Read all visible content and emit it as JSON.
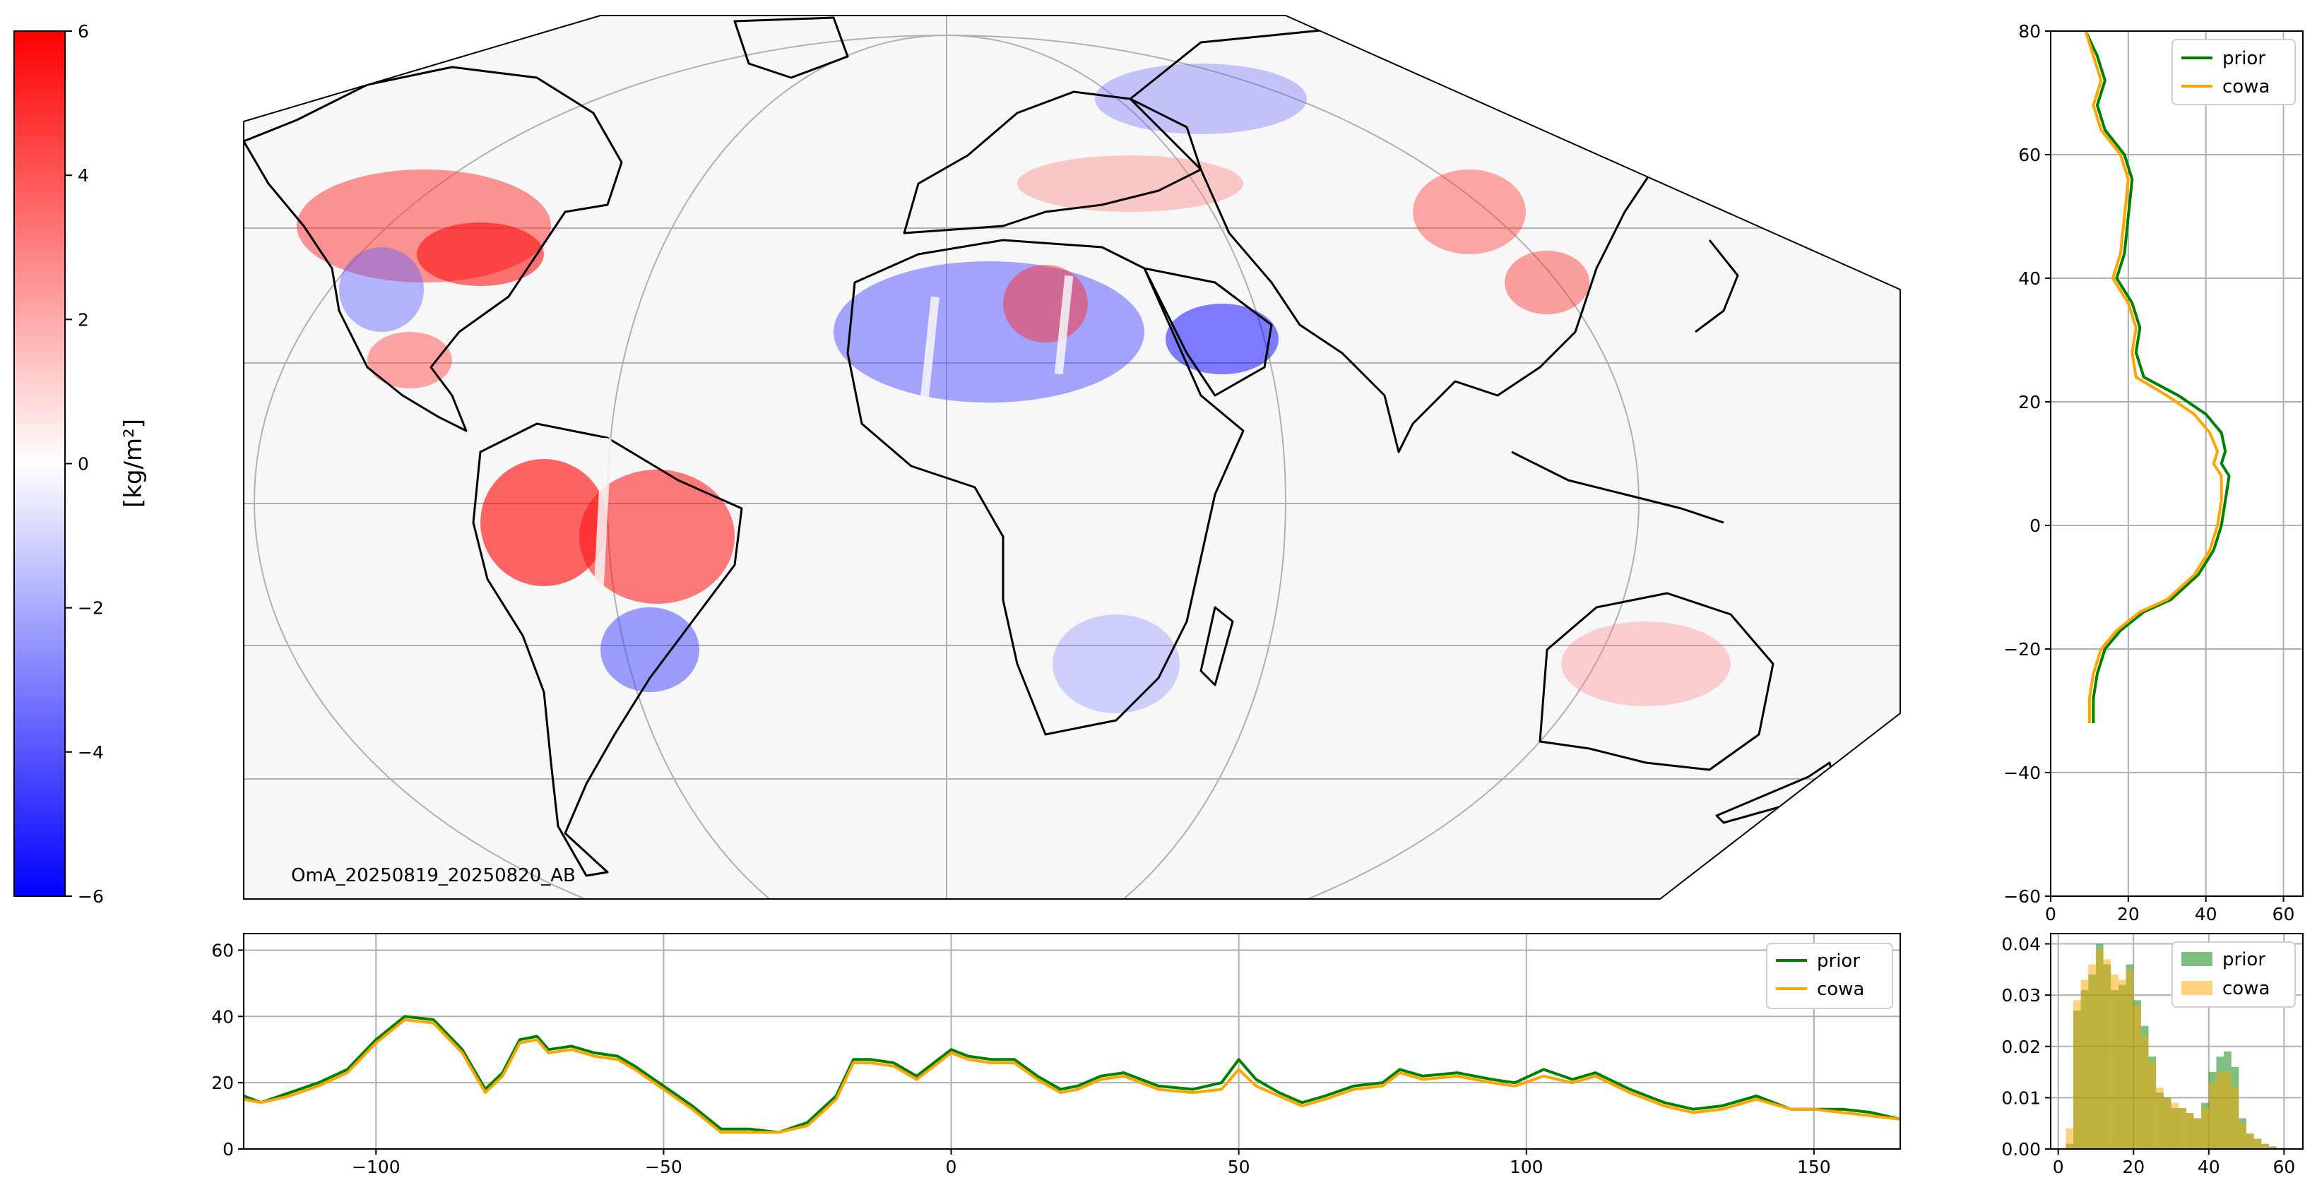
{
  "colorbar": {
    "label": "[kg/m²]",
    "min": -6,
    "max": 6,
    "ticks": [
      "6",
      "4",
      "2",
      "0",
      "−2",
      "−4",
      "−6"
    ],
    "colors": [
      "#0000ff",
      "#ffffff",
      "#ff0000"
    ]
  },
  "map": {
    "annotation": "OmA_20250819_20250820_AB",
    "projection": "Robinson-like (clipped)",
    "lon_range": [
      -120,
      165
    ],
    "lat_range": [
      -60,
      80
    ],
    "gridlines": true,
    "colors": {
      "positive": "#ff0000",
      "negative": "#0000ff",
      "background": "#f7f7f7",
      "coast": "#000000"
    }
  },
  "chart_data": [
    {
      "type": "line",
      "panel": "latitude-profile",
      "orientation": "horizontal values, latitude on y",
      "xlim": [
        0,
        65
      ],
      "ylim": [
        -60,
        80
      ],
      "xticks": [
        "0",
        "20",
        "40",
        "60"
      ],
      "yticks": [
        "80",
        "60",
        "40",
        "20",
        "0",
        "−20",
        "−40",
        "−60"
      ],
      "grid": true,
      "legend_position": "top-right",
      "series": [
        {
          "name": "prior",
          "color": "#008000",
          "points": [
            [
              9,
              80
            ],
            [
              12,
              76
            ],
            [
              14,
              72
            ],
            [
              12,
              68
            ],
            [
              14,
              64
            ],
            [
              19,
              60
            ],
            [
              21,
              56
            ],
            [
              20,
              50
            ],
            [
              19,
              44
            ],
            [
              17,
              40
            ],
            [
              21,
              36
            ],
            [
              23,
              32
            ],
            [
              22,
              28
            ],
            [
              24,
              24
            ],
            [
              33,
              21
            ],
            [
              40,
              18
            ],
            [
              44,
              15
            ],
            [
              45,
              12
            ],
            [
              44,
              10
            ],
            [
              46,
              8
            ],
            [
              45,
              4
            ],
            [
              44,
              0
            ],
            [
              42,
              -4
            ],
            [
              38,
              -8
            ],
            [
              31,
              -12
            ],
            [
              24,
              -14
            ],
            [
              18,
              -17
            ],
            [
              14,
              -20
            ],
            [
              12,
              -24
            ],
            [
              11,
              -28
            ],
            [
              11,
              -32
            ]
          ]
        },
        {
          "name": "cowa",
          "color": "#ffa500",
          "points": [
            [
              9,
              80
            ],
            [
              11,
              76
            ],
            [
              13,
              72
            ],
            [
              11,
              68
            ],
            [
              13,
              64
            ],
            [
              18,
              60
            ],
            [
              20,
              56
            ],
            [
              19,
              50
            ],
            [
              18,
              44
            ],
            [
              16,
              40
            ],
            [
              20,
              36
            ],
            [
              22,
              32
            ],
            [
              21,
              28
            ],
            [
              22,
              24
            ],
            [
              30,
              21
            ],
            [
              37,
              18
            ],
            [
              41,
              15
            ],
            [
              43,
              12
            ],
            [
              42,
              10
            ],
            [
              44,
              8
            ],
            [
              44,
              4
            ],
            [
              43,
              0
            ],
            [
              41,
              -4
            ],
            [
              37,
              -8
            ],
            [
              30,
              -12
            ],
            [
              23,
              -14
            ],
            [
              17,
              -17
            ],
            [
              13,
              -20
            ],
            [
              11,
              -24
            ],
            [
              10,
              -28
            ],
            [
              10,
              -32
            ]
          ]
        }
      ]
    },
    {
      "type": "line",
      "panel": "longitude-profile",
      "xlim": [
        -123,
        165
      ],
      "ylim": [
        0,
        65
      ],
      "xticks": [
        "−100",
        "−50",
        "0",
        "50",
        "100",
        "150"
      ],
      "yticks": [
        "60",
        "40",
        "20",
        "0"
      ],
      "grid": true,
      "legend_position": "top-right",
      "series": [
        {
          "name": "prior",
          "color": "#008000",
          "points": [
            [
              -123,
              16
            ],
            [
              -120,
              14
            ],
            [
              -115,
              17
            ],
            [
              -110,
              20
            ],
            [
              -105,
              24
            ],
            [
              -100,
              33
            ],
            [
              -95,
              40
            ],
            [
              -90,
              39
            ],
            [
              -85,
              30
            ],
            [
              -81,
              18
            ],
            [
              -78,
              23
            ],
            [
              -75,
              33
            ],
            [
              -72,
              34
            ],
            [
              -70,
              30
            ],
            [
              -66,
              31
            ],
            [
              -62,
              29
            ],
            [
              -58,
              28
            ],
            [
              -55,
              25
            ],
            [
              -50,
              19
            ],
            [
              -45,
              13
            ],
            [
              -40,
              6
            ],
            [
              -35,
              6
            ],
            [
              -30,
              5
            ],
            [
              -25,
              8
            ],
            [
              -20,
              16
            ],
            [
              -17,
              27
            ],
            [
              -14,
              27
            ],
            [
              -10,
              26
            ],
            [
              -6,
              22
            ],
            [
              -3,
              26
            ],
            [
              0,
              30
            ],
            [
              3,
              28
            ],
            [
              7,
              27
            ],
            [
              11,
              27
            ],
            [
              15,
              22
            ],
            [
              19,
              18
            ],
            [
              22,
              19
            ],
            [
              26,
              22
            ],
            [
              30,
              23
            ],
            [
              36,
              19
            ],
            [
              42,
              18
            ],
            [
              47,
              20
            ],
            [
              50,
              27
            ],
            [
              53,
              21
            ],
            [
              57,
              17
            ],
            [
              61,
              14
            ],
            [
              65,
              16
            ],
            [
              70,
              19
            ],
            [
              75,
              20
            ],
            [
              78,
              24
            ],
            [
              82,
              22
            ],
            [
              88,
              23
            ],
            [
              94,
              21
            ],
            [
              98,
              20
            ],
            [
              103,
              24
            ],
            [
              108,
              21
            ],
            [
              112,
              23
            ],
            [
              118,
              18
            ],
            [
              124,
              14
            ],
            [
              129,
              12
            ],
            [
              134,
              13
            ],
            [
              140,
              16
            ],
            [
              146,
              12
            ],
            [
              150,
              12
            ],
            [
              155,
              12
            ],
            [
              160,
              11
            ],
            [
              165,
              9
            ]
          ]
        },
        {
          "name": "cowa",
          "color": "#ffa500",
          "points": [
            [
              -123,
              15
            ],
            [
              -120,
              14
            ],
            [
              -115,
              16
            ],
            [
              -110,
              19
            ],
            [
              -105,
              23
            ],
            [
              -100,
              32
            ],
            [
              -95,
              39
            ],
            [
              -90,
              38
            ],
            [
              -85,
              29
            ],
            [
              -81,
              17
            ],
            [
              -78,
              22
            ],
            [
              -75,
              32
            ],
            [
              -72,
              33
            ],
            [
              -70,
              29
            ],
            [
              -66,
              30
            ],
            [
              -62,
              28
            ],
            [
              -58,
              27
            ],
            [
              -55,
              24
            ],
            [
              -50,
              18
            ],
            [
              -45,
              12
            ],
            [
              -40,
              5
            ],
            [
              -35,
              5
            ],
            [
              -30,
              5
            ],
            [
              -25,
              7
            ],
            [
              -20,
              15
            ],
            [
              -17,
              26
            ],
            [
              -14,
              26
            ],
            [
              -10,
              25
            ],
            [
              -6,
              21
            ],
            [
              -3,
              25
            ],
            [
              0,
              29
            ],
            [
              3,
              27
            ],
            [
              7,
              26
            ],
            [
              11,
              26
            ],
            [
              15,
              21
            ],
            [
              19,
              17
            ],
            [
              22,
              18
            ],
            [
              26,
              21
            ],
            [
              30,
              22
            ],
            [
              36,
              18
            ],
            [
              42,
              17
            ],
            [
              47,
              18
            ],
            [
              50,
              24
            ],
            [
              53,
              19
            ],
            [
              57,
              16
            ],
            [
              61,
              13
            ],
            [
              65,
              15
            ],
            [
              70,
              18
            ],
            [
              75,
              19
            ],
            [
              78,
              23
            ],
            [
              82,
              21
            ],
            [
              88,
              22
            ],
            [
              94,
              20
            ],
            [
              98,
              19
            ],
            [
              103,
              22
            ],
            [
              108,
              20
            ],
            [
              112,
              22
            ],
            [
              118,
              17
            ],
            [
              124,
              13
            ],
            [
              129,
              11
            ],
            [
              134,
              12
            ],
            [
              140,
              15
            ],
            [
              146,
              12
            ],
            [
              150,
              12
            ],
            [
              155,
              11
            ],
            [
              160,
              10
            ],
            [
              165,
              9
            ]
          ]
        }
      ]
    },
    {
      "type": "bar",
      "panel": "histogram",
      "xlim": [
        -2,
        65
      ],
      "ylim": [
        0,
        0.042
      ],
      "xticks": [
        "0",
        "20",
        "40",
        "60"
      ],
      "yticks": [
        "0.04",
        "0.03",
        "0.02",
        "0.01",
        "0.00"
      ],
      "grid": true,
      "legend_position": "top-right",
      "bin_edges": [
        2,
        4,
        6,
        8,
        10,
        12,
        14,
        16,
        18,
        20,
        22,
        24,
        26,
        28,
        30,
        32,
        34,
        36,
        38,
        40,
        42,
        44,
        46,
        48,
        50,
        52,
        54,
        56,
        58,
        60
      ],
      "series": [
        {
          "name": "prior",
          "color": "#008000",
          "alpha": 0.5,
          "values": [
            0.001,
            0.027,
            0.031,
            0.034,
            0.04,
            0.036,
            0.031,
            0.032,
            0.036,
            0.029,
            0.024,
            0.018,
            0.011,
            0.01,
            0.008,
            0.008,
            0.007,
            0.006,
            0.009,
            0.015,
            0.018,
            0.019,
            0.016,
            0.006,
            0.003,
            0.002,
            0.001,
            0.0005,
            0.0002
          ]
        },
        {
          "name": "cowa",
          "color": "#ffa500",
          "alpha": 0.5,
          "values": [
            0.004,
            0.029,
            0.033,
            0.036,
            0.039,
            0.037,
            0.034,
            0.033,
            0.035,
            0.028,
            0.022,
            0.017,
            0.012,
            0.01,
            0.009,
            0.008,
            0.007,
            0.006,
            0.008,
            0.013,
            0.015,
            0.015,
            0.012,
            0.005,
            0.003,
            0.002,
            0.001,
            0.0004,
            0.0002
          ]
        }
      ]
    }
  ]
}
